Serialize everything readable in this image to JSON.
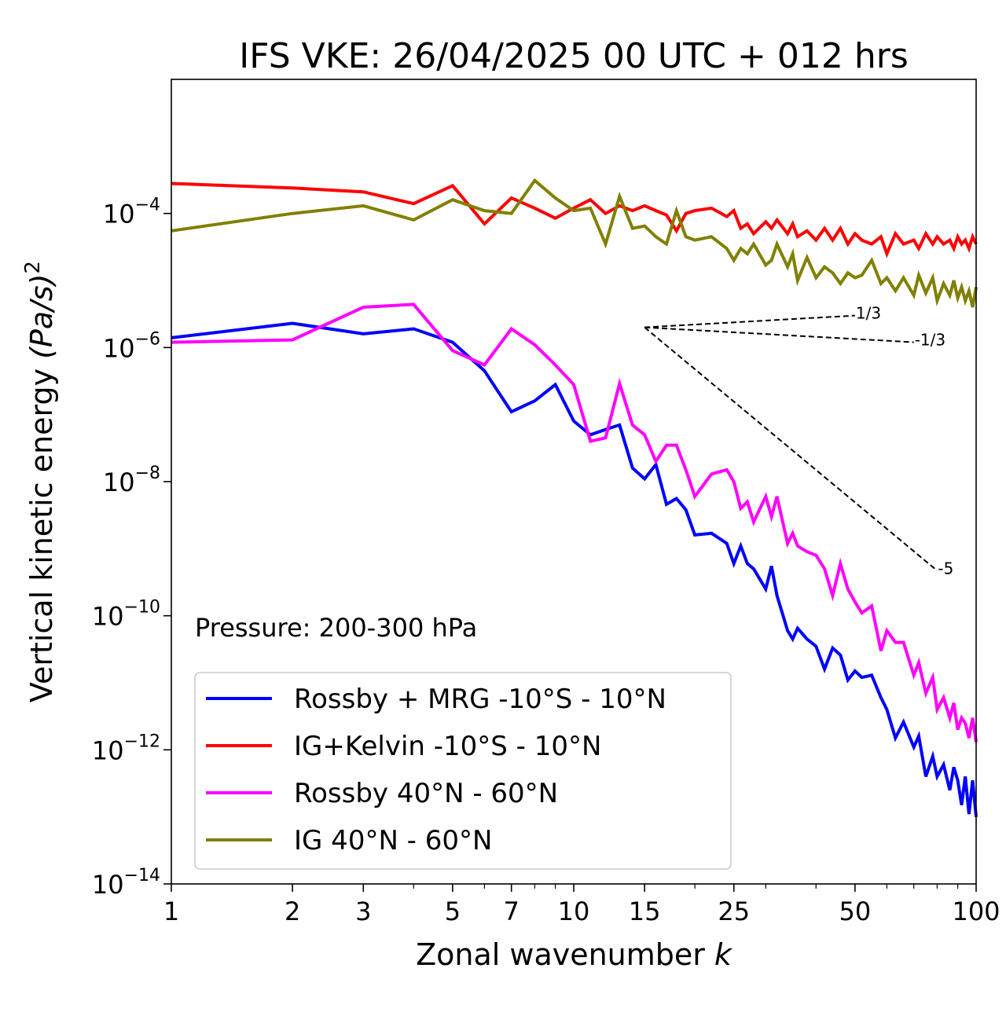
{
  "chart_data": {
    "type": "line",
    "title": "IFS VKE: 26/04/2025 00 UTC + 012 hrs",
    "xlabel": "Zonal wavenumber",
    "xlabel_var": "k",
    "ylabel": "Vertical kinetic energy",
    "ylabel_unit": "(Pa/s)",
    "ylabel_exp": "2",
    "xscale": "log",
    "yscale": "log",
    "xlim": [
      1,
      100
    ],
    "ylim": [
      1e-14,
      0.01
    ],
    "grid": false,
    "legend_position": "lower-left",
    "annotation": "Pressure: 200-300 hPa",
    "x_ticks": [
      {
        "value": 1,
        "label": "1"
      },
      {
        "value": 2,
        "label": "2"
      },
      {
        "value": 3,
        "label": "3"
      },
      {
        "value": 5,
        "label": "5"
      },
      {
        "value": 7,
        "label": "7"
      },
      {
        "value": 10,
        "label": "10"
      },
      {
        "value": 15,
        "label": "15"
      },
      {
        "value": 25,
        "label": "25"
      },
      {
        "value": 50,
        "label": "50"
      },
      {
        "value": 100,
        "label": "100"
      }
    ],
    "y_ticks": [
      {
        "value": 0.0001,
        "base": "10",
        "exp": "−4"
      },
      {
        "value": 1e-06,
        "base": "10",
        "exp": "−6"
      },
      {
        "value": 1e-08,
        "base": "10",
        "exp": "−8"
      },
      {
        "value": 1e-10,
        "base": "10",
        "exp": "−10"
      },
      {
        "value": 1e-12,
        "base": "10",
        "exp": "−12"
      },
      {
        "value": 1e-14,
        "base": "10",
        "exp": "−14"
      }
    ],
    "series": [
      {
        "name": "Rossby + MRG -10°S - 10°N",
        "color": "#0000ff",
        "x": [
          1,
          2,
          3,
          4,
          5,
          6,
          7,
          8,
          9,
          10,
          11,
          12,
          13,
          14,
          15,
          16,
          17,
          18,
          19,
          20,
          22,
          24,
          25,
          26,
          27,
          28,
          30,
          31,
          32,
          34,
          35,
          36,
          38,
          40,
          42,
          44,
          46,
          48,
          50,
          52,
          55,
          58,
          60,
          63,
          66,
          70,
          72,
          75,
          78,
          80,
          83,
          86,
          88,
          90,
          92,
          94,
          96,
          98,
          100
        ],
        "y": [
          1.4e-06,
          2.3e-06,
          1.6e-06,
          1.9e-06,
          1.2e-06,
          4.5e-07,
          1.1e-07,
          1.6e-07,
          2.8e-07,
          8e-08,
          5e-08,
          6e-08,
          7e-08,
          1.6e-08,
          1.1e-08,
          1.8e-08,
          4.6e-09,
          5.6e-09,
          3.8e-09,
          1.6e-09,
          1.7e-09,
          1.2e-09,
          6e-10,
          1.1e-09,
          6e-10,
          5e-10,
          2.5e-10,
          5.5e-10,
          2e-10,
          6e-11,
          4.5e-11,
          6.5e-11,
          4.5e-11,
          3.5e-11,
          1.6e-11,
          3.3e-11,
          2.6e-11,
          1.1e-11,
          1.5e-11,
          1.2e-11,
          1.3e-11,
          6e-12,
          4e-12,
          1.5e-12,
          2.6e-12,
          1.1e-12,
          1.6e-12,
          4e-13,
          8e-13,
          4e-13,
          6e-13,
          2.5e-13,
          5.5e-13,
          3.5e-13,
          1.5e-13,
          4e-13,
          1.1e-13,
          3.5e-13,
          1e-13
        ]
      },
      {
        "name": "IG+Kelvin -10°S - 10°N",
        "color": "#ff0000",
        "x": [
          1,
          2,
          3,
          4,
          5,
          6,
          7,
          8,
          9,
          10,
          11,
          12,
          13,
          14,
          15,
          16,
          17,
          18,
          19,
          20,
          22,
          24,
          25,
          26,
          27,
          28,
          30,
          31,
          32,
          34,
          35,
          36,
          38,
          40,
          42,
          44,
          46,
          48,
          50,
          52,
          55,
          58,
          60,
          63,
          66,
          70,
          72,
          75,
          78,
          80,
          83,
          86,
          88,
          90,
          92,
          94,
          96,
          98,
          100
        ],
        "y": [
          0.00028,
          0.00024,
          0.00021,
          0.00014,
          0.00026,
          7e-05,
          0.00017,
          0.00012,
          8.5e-05,
          0.00012,
          0.00016,
          0.0001,
          0.00013,
          0.00011,
          0.00013,
          0.00011,
          9.5e-05,
          5.5e-05,
          0.0001,
          0.00011,
          0.00012,
          9e-05,
          0.00011,
          6e-05,
          7e-05,
          5e-05,
          7.5e-05,
          6e-05,
          8e-05,
          5e-05,
          7e-05,
          4.5e-05,
          5.5e-05,
          4e-05,
          6e-05,
          4e-05,
          6e-05,
          3.5e-05,
          5e-05,
          4e-05,
          3.5e-05,
          4.5e-05,
          2.5e-05,
          5e-05,
          3.5e-05,
          4e-05,
          3e-05,
          5e-05,
          3.5e-05,
          4.5e-05,
          3.5e-05,
          4e-05,
          3e-05,
          4.5e-05,
          3.5e-05,
          4e-05,
          3e-05,
          4.5e-05,
          3.5e-05
        ]
      },
      {
        "name": "Rossby 40°N - 60°N",
        "color": "#ff00ff",
        "x": [
          1,
          2,
          3,
          4,
          5,
          6,
          7,
          8,
          9,
          10,
          11,
          12,
          13,
          14,
          15,
          16,
          17,
          18,
          19,
          20,
          22,
          24,
          25,
          26,
          27,
          28,
          30,
          31,
          32,
          34,
          35,
          36,
          38,
          40,
          42,
          44,
          46,
          48,
          50,
          52,
          55,
          58,
          60,
          63,
          66,
          70,
          72,
          75,
          78,
          80,
          83,
          86,
          88,
          90,
          92,
          94,
          96,
          98,
          100
        ],
        "y": [
          1.2e-06,
          1.3e-06,
          4e-06,
          4.4e-06,
          9e-07,
          5.5e-07,
          1.9e-06,
          1.1e-06,
          5.5e-07,
          2.8e-07,
          4e-08,
          4.5e-08,
          2.9e-07,
          7e-08,
          5e-08,
          2e-08,
          3.5e-08,
          3.5e-08,
          1.5e-08,
          6e-09,
          1.3e-08,
          1.5e-08,
          1e-08,
          4e-09,
          5e-09,
          2.5e-09,
          6e-09,
          3e-09,
          6e-09,
          1.2e-09,
          1.7e-09,
          1.1e-09,
          9e-10,
          8e-10,
          5e-10,
          2e-10,
          6e-10,
          2.5e-10,
          1.6e-10,
          1.1e-10,
          1.4e-10,
          3e-11,
          6e-11,
          4e-11,
          4e-11,
          1.3e-11,
          2e-11,
          7e-12,
          1.2e-11,
          4e-12,
          6e-12,
          3e-12,
          5e-12,
          2e-12,
          3e-12,
          2.5e-12,
          1.5e-12,
          3e-12,
          1.3e-12
        ]
      },
      {
        "name": "IG 40°N - 60°N",
        "color": "#808000",
        "x": [
          1,
          2,
          3,
          4,
          5,
          6,
          7,
          8,
          9,
          10,
          11,
          12,
          13,
          14,
          15,
          16,
          17,
          18,
          19,
          20,
          22,
          24,
          25,
          26,
          27,
          28,
          30,
          31,
          32,
          34,
          35,
          36,
          38,
          40,
          42,
          44,
          46,
          48,
          50,
          52,
          55,
          58,
          60,
          63,
          66,
          70,
          72,
          75,
          78,
          80,
          83,
          86,
          88,
          90,
          92,
          94,
          96,
          98,
          100
        ],
        "y": [
          5.5e-05,
          0.0001,
          0.00013,
          8e-05,
          0.00016,
          0.00011,
          0.0001,
          0.00031,
          0.00017,
          0.00011,
          0.00012,
          3.5e-05,
          0.00018,
          6e-05,
          6.5e-05,
          4.5e-05,
          3.5e-05,
          0.00011,
          4.5e-05,
          4e-05,
          4.5e-05,
          3e-05,
          2e-05,
          3e-05,
          2.5e-05,
          3.5e-05,
          1.7e-05,
          2e-05,
          3.5e-05,
          1.6e-05,
          2.5e-05,
          1e-05,
          2.2e-05,
          1.1e-05,
          1.6e-05,
          1.3e-05,
          9e-06,
          1.3e-05,
          1.1e-05,
          1.2e-05,
          2e-05,
          9e-06,
          1.1e-05,
          7e-06,
          1.1e-05,
          6e-06,
          1.2e-05,
          6.5e-06,
          1.1e-05,
          5e-06,
          9e-06,
          6e-06,
          1e-05,
          5.5e-06,
          8e-06,
          5e-06,
          7e-06,
          4e-06,
          8e-06
        ]
      }
    ],
    "reference_slopes": [
      {
        "label": "1/3",
        "x": [
          15,
          50
        ],
        "y": [
          2e-06,
          3e-06
        ]
      },
      {
        "label": "-1/3",
        "x": [
          15,
          70
        ],
        "y": [
          2e-06,
          1.2e-06
        ]
      },
      {
        "label": "-5",
        "x": [
          15,
          80
        ],
        "y": [
          2e-06,
          4.7e-10
        ]
      }
    ]
  }
}
